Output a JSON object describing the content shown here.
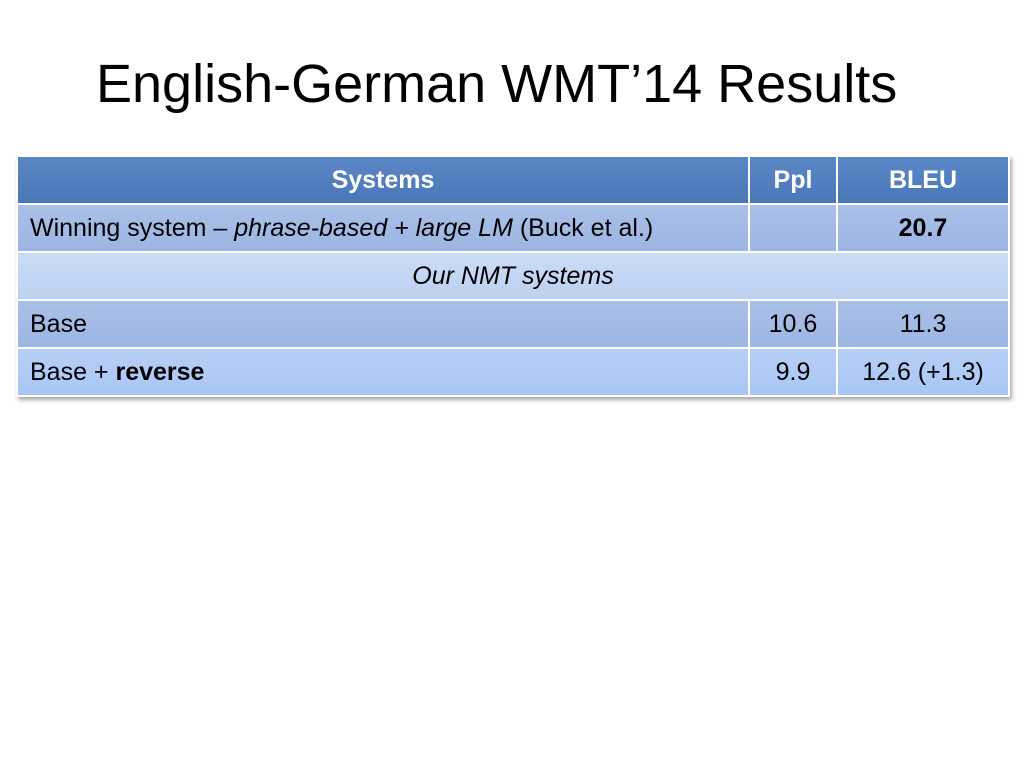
{
  "slide": {
    "title": "English-German WMT’14 Results"
  },
  "table": {
    "headers": {
      "systems": "Systems",
      "ppl": "Ppl",
      "bleu": "BLEU"
    },
    "winning_row": {
      "system_prefix": "Winning system – ",
      "system_italic": "phrase-based + large LM",
      "system_suffix": " (Buck et al.)",
      "ppl": "",
      "bleu": "20.7"
    },
    "section_label": "Our NMT systems",
    "base_row": {
      "system": "Base",
      "ppl": "10.6",
      "bleu": "11.3"
    },
    "reverse_row": {
      "system_prefix": "Base + ",
      "system_bold": "reverse",
      "ppl": "9.9",
      "bleu": "12.6 (+1.3)"
    }
  }
}
